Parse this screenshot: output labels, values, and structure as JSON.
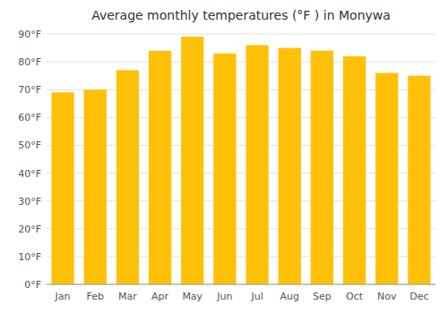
{
  "chart_data": {
    "type": "bar",
    "title": "Average monthly temperatures (°F ) in Monywa",
    "categories": [
      "Jan",
      "Feb",
      "Mar",
      "Apr",
      "May",
      "Jun",
      "Jul",
      "Aug",
      "Sep",
      "Oct",
      "Nov",
      "Dec"
    ],
    "values": [
      69,
      70,
      77,
      84,
      89,
      83,
      86,
      85,
      84,
      82,
      76,
      75
    ],
    "color": "#FFC107",
    "ylim": [
      0,
      90
    ],
    "yticks": [
      {
        "value": 0,
        "label": "0°F"
      },
      {
        "value": 10,
        "label": "10°F"
      },
      {
        "value": 20,
        "label": "20°F"
      },
      {
        "value": 30,
        "label": "30°F"
      },
      {
        "value": 40,
        "label": "40°F"
      },
      {
        "value": 50,
        "label": "50°F"
      },
      {
        "value": 60,
        "label": "60°F"
      },
      {
        "value": 70,
        "label": "70°F"
      },
      {
        "value": 80,
        "label": "80°F"
      },
      {
        "value": 90,
        "label": "90°F"
      }
    ],
    "grid": true
  }
}
